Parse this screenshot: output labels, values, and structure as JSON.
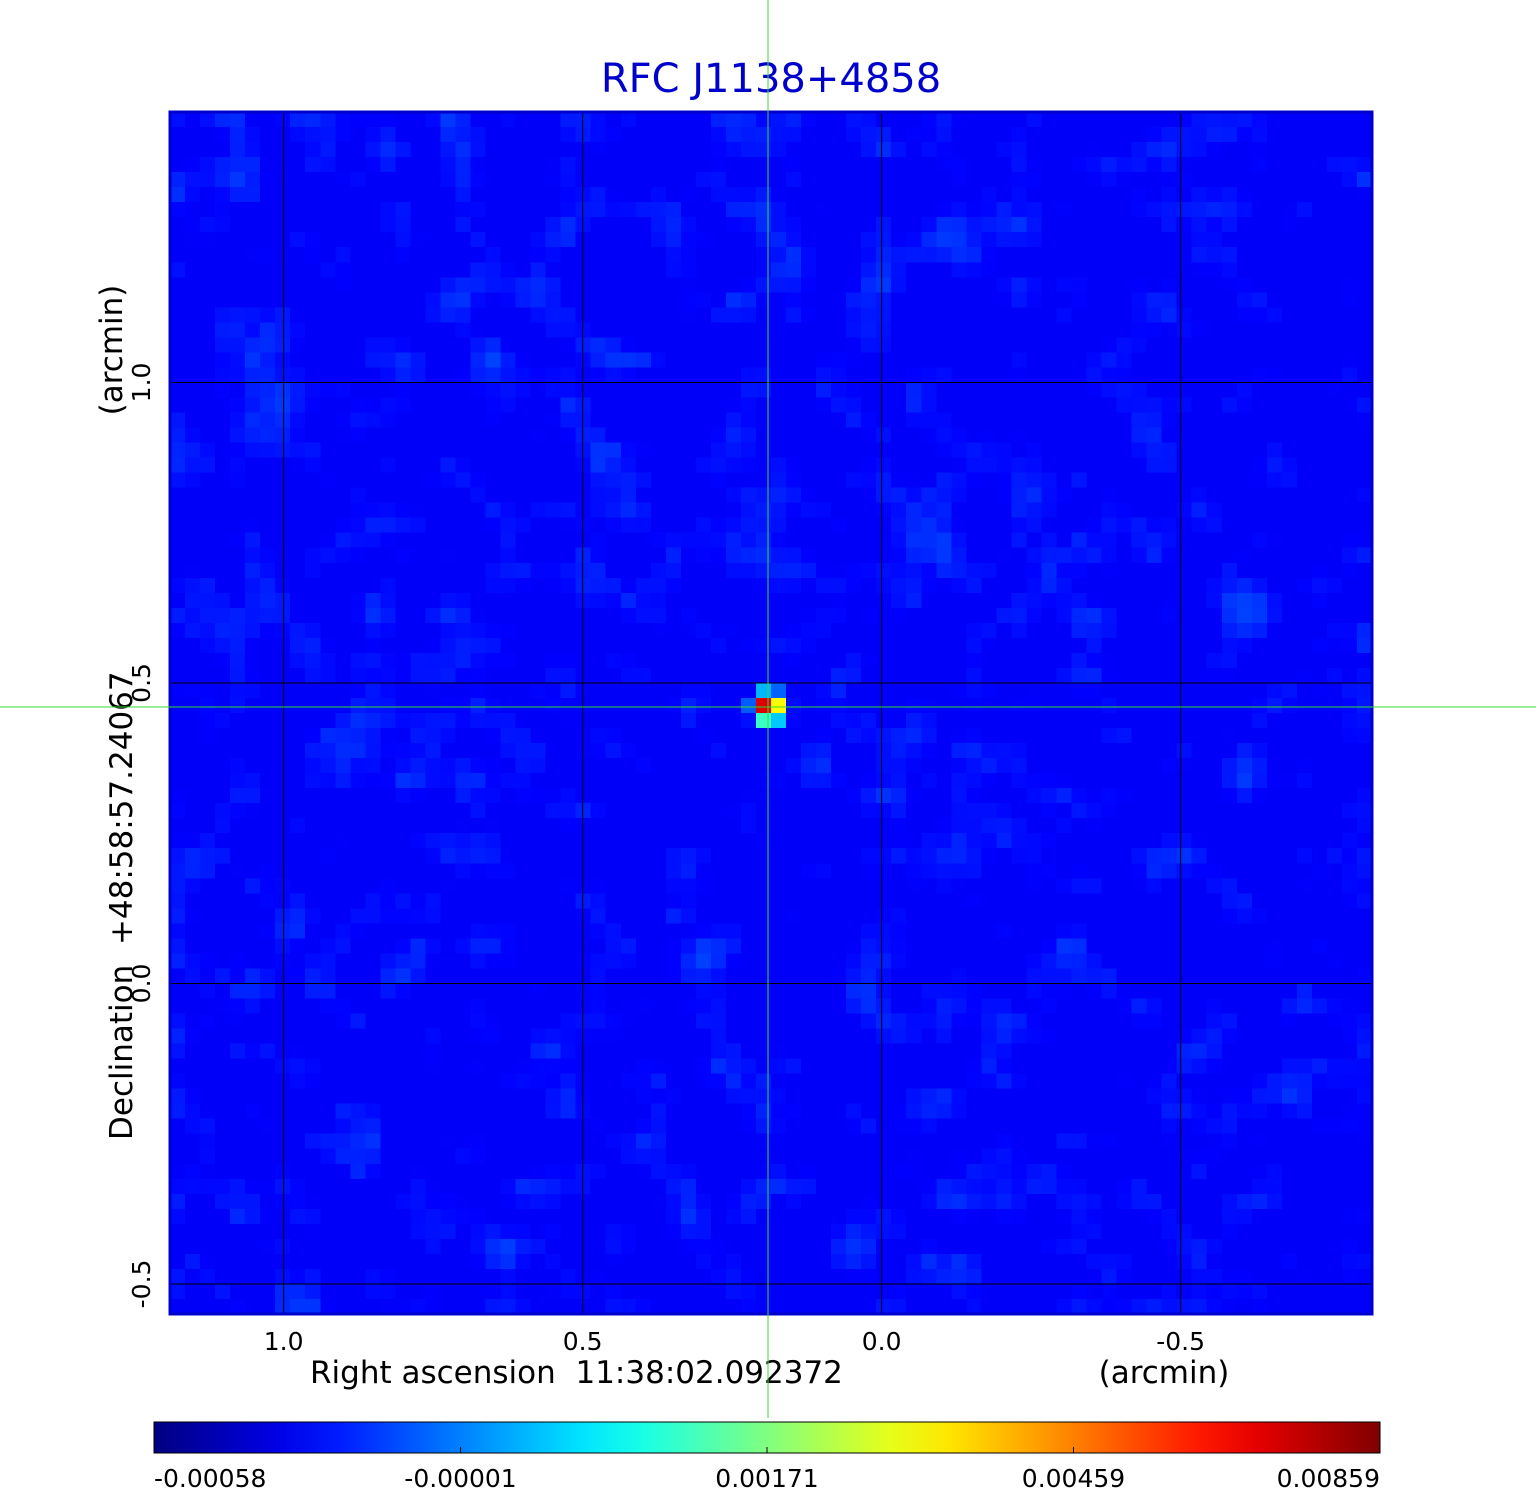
{
  "chart_data": {
    "type": "heatmap",
    "title": "RFC J1138+4858",
    "colors": {
      "title": "#0000cc",
      "frame": "#0000cc",
      "crosshair": "#33dd33",
      "grid": "#000000"
    },
    "colormap": "jet",
    "xlabel": "Right ascension  11:38:02.092372",
    "xunit": "(arcmin)",
    "ylabel": "Declination  +48:58:57.24067",
    "yunit": "(arcmin)",
    "xlim": [
      1.19,
      -0.82
    ],
    "ylim": [
      -0.55,
      1.45
    ],
    "x_ticks": [
      {
        "value": 1.0,
        "label": "1.0"
      },
      {
        "value": 0.5,
        "label": "0.5"
      },
      {
        "value": 0.0,
        "label": "0.0"
      },
      {
        "value": -0.5,
        "label": "-0.5"
      }
    ],
    "y_ticks": [
      {
        "value": 1.0,
        "label": "1.0"
      },
      {
        "value": 0.5,
        "label": "0.5"
      },
      {
        "value": 0.0,
        "label": "0.0"
      },
      {
        "value": -0.5,
        "label": "-0.5"
      }
    ],
    "grid": true,
    "crosshair": {
      "x": 0.19,
      "y": 0.46
    },
    "source_peak": {
      "x": 0.19,
      "y": 0.46,
      "value": 0.00859
    },
    "colorbar": {
      "min": -0.00058,
      "max": 0.00859,
      "ticks": [
        {
          "value": -0.00058,
          "label": "-0.00058"
        },
        {
          "value": -1e-05,
          "label": "-0.00001"
        },
        {
          "value": 0.00171,
          "label": "0.00171"
        },
        {
          "value": 0.00459,
          "label": "0.00459"
        },
        {
          "value": 0.00859,
          "label": "0.00859"
        }
      ]
    }
  }
}
